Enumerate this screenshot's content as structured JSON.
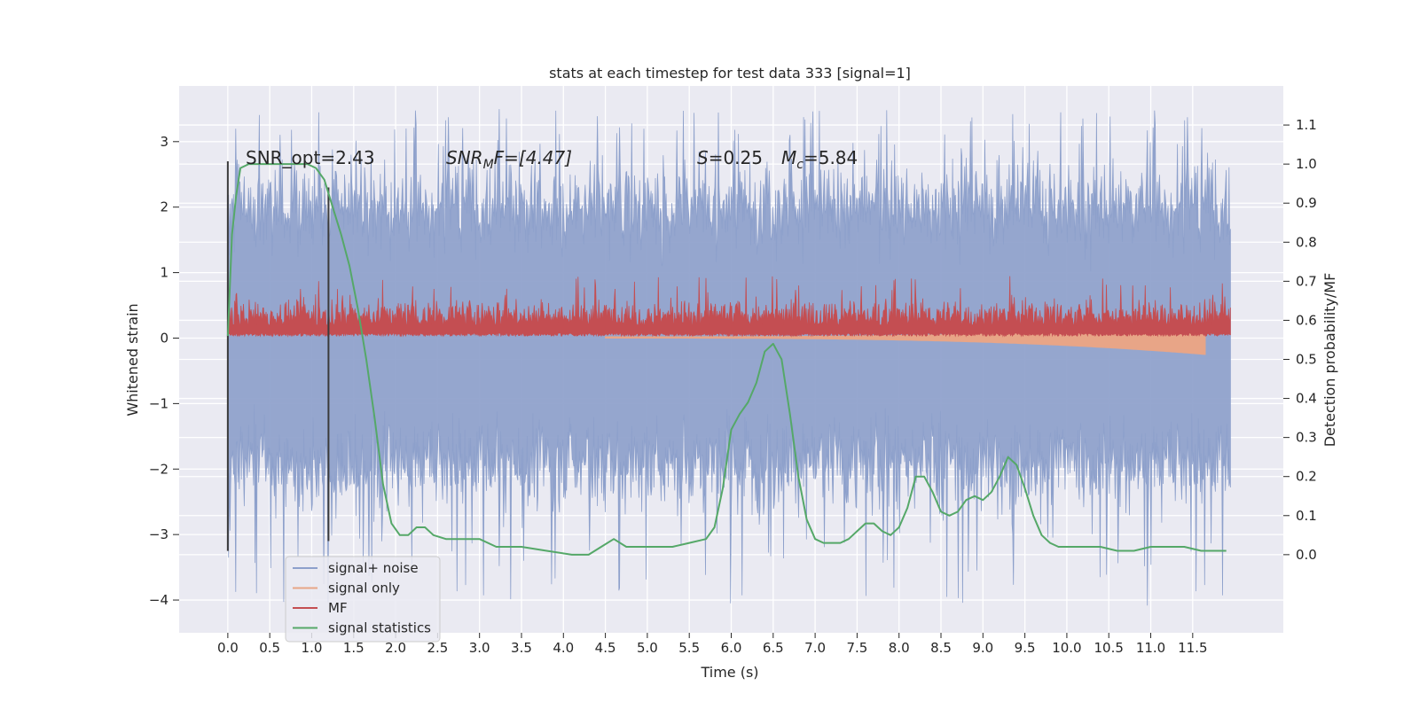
{
  "chart_data": {
    "type": "line",
    "title": "stats at each timestep for test data 333 [signal=1]",
    "xlabel": "Time (s)",
    "ylabel": "Whitened strain",
    "y2label": "Detection probability/MF",
    "xlim": [
      -0.58,
      12.58
    ],
    "ylim": [
      -4.5,
      3.85
    ],
    "y2lim": [
      -0.2,
      1.2
    ],
    "x_ticks": [
      0.0,
      0.5,
      1.0,
      1.5,
      2.0,
      2.5,
      3.0,
      3.5,
      4.0,
      4.5,
      5.0,
      5.5,
      6.0,
      6.5,
      7.0,
      7.5,
      8.0,
      8.5,
      9.0,
      9.5,
      10.0,
      10.5,
      11.0,
      11.5
    ],
    "x_tick_labels": [
      "0.0",
      "0.5",
      "1.0",
      "1.5",
      "2.0",
      "2.5",
      "3.0",
      "3.5",
      "4.0",
      "4.5",
      "5.0",
      "5.5",
      "6.0",
      "6.5",
      "7.0",
      "7.5",
      "8.0",
      "8.5",
      "9.0",
      "9.5",
      "10.0",
      "10.5",
      "11.0",
      "11.5"
    ],
    "y_ticks": [
      -4,
      -3,
      -2,
      -1,
      0,
      1,
      2,
      3
    ],
    "y_tick_labels": [
      "−4",
      "−3",
      "−2",
      "−1",
      "0",
      "1",
      "2",
      "3"
    ],
    "y2_ticks": [
      0.0,
      0.1,
      0.2,
      0.3,
      0.4,
      0.5,
      0.6,
      0.7,
      0.8,
      0.9,
      1.0,
      1.1
    ],
    "y2_tick_labels": [
      "0.0",
      "0.1",
      "0.2",
      "0.3",
      "0.4",
      "0.5",
      "0.6",
      "0.7",
      "0.8",
      "0.9",
      "1.0",
      "1.1"
    ],
    "grid": true,
    "legend_position": "lower-left",
    "legend": [
      {
        "label": "signal+ noise",
        "color": "#8da0cb"
      },
      {
        "label": "signal only",
        "color": "#e8a587"
      },
      {
        "label": "MF",
        "color": "#c44e52"
      },
      {
        "label": "signal statistics",
        "color": "#55a868"
      }
    ],
    "annotations": {
      "snr_opt": "SNR_opt=2.43",
      "snr_mf_main": "SNR",
      "snr_mf_sub": "M",
      "snr_mf_rest": "F=[4.47]",
      "s_main": "S",
      "s_rest": "=0.25",
      "mc_main": "M",
      "mc_sub": "c",
      "mc_rest": "=5.84"
    },
    "vertical_markers": [
      0.0,
      1.2
    ],
    "signal_noise": {
      "x_start": 0.0,
      "x_end": 11.95,
      "typical_envelope": [
        -1.9,
        2.0
      ],
      "peak_range": [
        -4.1,
        3.5
      ]
    },
    "mf": {
      "x_start": 0.0,
      "x_end": 11.95,
      "baseline": 0.08,
      "typical_top": 0.45,
      "peak_top": 0.95
    },
    "signal_only": {
      "x_start": 4.5,
      "x_end": 11.65,
      "envelope_start": [
        0.0,
        0.02
      ],
      "envelope_end": [
        -0.25,
        0.2
      ]
    },
    "signal_statistics": {
      "x": [
        0.0,
        0.05,
        0.1,
        0.15,
        0.25,
        0.4,
        0.6,
        0.8,
        0.95,
        1.05,
        1.15,
        1.25,
        1.35,
        1.45,
        1.55,
        1.65,
        1.75,
        1.85,
        1.95,
        2.05,
        2.15,
        2.25,
        2.35,
        2.45,
        2.6,
        2.8,
        3.0,
        3.2,
        3.5,
        3.8,
        4.1,
        4.3,
        4.45,
        4.6,
        4.75,
        4.9,
        5.1,
        5.3,
        5.5,
        5.7,
        5.8,
        5.9,
        6.0,
        6.1,
        6.2,
        6.3,
        6.4,
        6.5,
        6.55,
        6.6,
        6.7,
        6.8,
        6.9,
        7.0,
        7.1,
        7.2,
        7.3,
        7.4,
        7.5,
        7.6,
        7.7,
        7.8,
        7.9,
        8.0,
        8.1,
        8.2,
        8.3,
        8.4,
        8.5,
        8.6,
        8.7,
        8.8,
        8.9,
        9.0,
        9.1,
        9.2,
        9.3,
        9.4,
        9.5,
        9.6,
        9.7,
        9.8,
        9.9,
        10.0,
        10.2,
        10.4,
        10.6,
        10.8,
        11.0,
        11.2,
        11.4,
        11.6,
        11.8,
        11.9
      ],
      "y": [
        0.56,
        0.82,
        0.92,
        0.99,
        1.0,
        1.0,
        1.0,
        1.0,
        1.0,
        0.99,
        0.96,
        0.89,
        0.82,
        0.74,
        0.63,
        0.5,
        0.35,
        0.18,
        0.08,
        0.05,
        0.05,
        0.07,
        0.07,
        0.05,
        0.04,
        0.04,
        0.04,
        0.02,
        0.02,
        0.01,
        0.0,
        0.0,
        0.02,
        0.04,
        0.02,
        0.02,
        0.02,
        0.02,
        0.03,
        0.04,
        0.07,
        0.17,
        0.32,
        0.36,
        0.39,
        0.44,
        0.52,
        0.54,
        0.52,
        0.5,
        0.36,
        0.2,
        0.09,
        0.04,
        0.03,
        0.03,
        0.03,
        0.04,
        0.06,
        0.08,
        0.08,
        0.06,
        0.05,
        0.07,
        0.12,
        0.2,
        0.2,
        0.16,
        0.11,
        0.1,
        0.11,
        0.14,
        0.15,
        0.14,
        0.16,
        0.2,
        0.25,
        0.23,
        0.17,
        0.1,
        0.05,
        0.03,
        0.02,
        0.02,
        0.02,
        0.02,
        0.01,
        0.01,
        0.02,
        0.02,
        0.02,
        0.01,
        0.01,
        0.01
      ]
    },
    "colors": {
      "background": "#eaeaf2",
      "grid": "#ffffff",
      "signal_noise": "#8da0cb",
      "signal_only": "#e8a587",
      "mf": "#c44e52",
      "signal_statistics": "#55a868",
      "marker": "#3b3b3b"
    }
  }
}
